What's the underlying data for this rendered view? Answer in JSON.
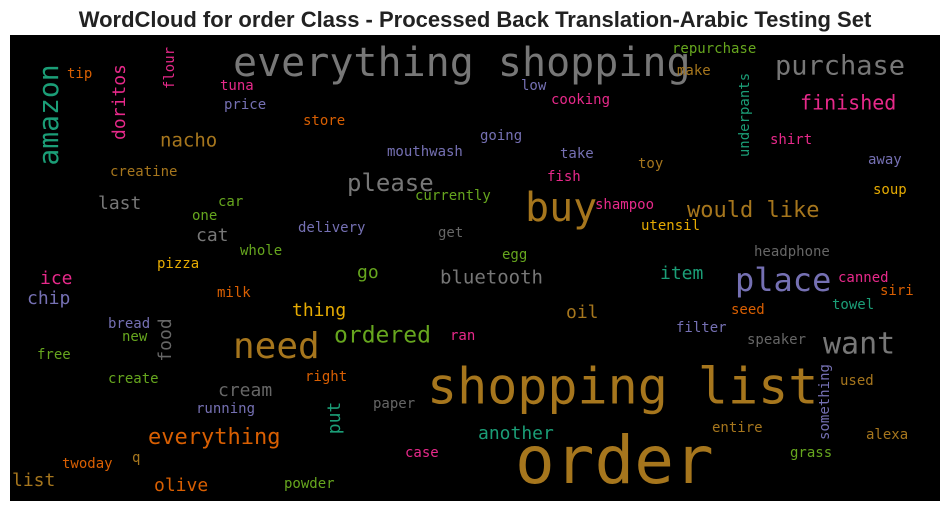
{
  "title": "WordCloud for order Class - Processed Back Translation-Arabic Testing Set",
  "words": [
    {
      "text": "everything shopping",
      "color": "#777777"
    },
    {
      "text": "purchase",
      "color": "#777777"
    },
    {
      "text": "amazon",
      "color": "#1b9e77"
    },
    {
      "text": "doritos",
      "color": "#e7298a"
    },
    {
      "text": "flour",
      "color": "#e7298a"
    },
    {
      "text": "tip",
      "color": "#d95f02"
    },
    {
      "text": "tuna",
      "color": "#e7298a"
    },
    {
      "text": "price",
      "color": "#7570b3"
    },
    {
      "text": "repurchase",
      "color": "#66a61e"
    },
    {
      "text": "make",
      "color": "#a6761d"
    },
    {
      "text": "low",
      "color": "#7570b3"
    },
    {
      "text": "cooking",
      "color": "#e7298a"
    },
    {
      "text": "underpants",
      "color": "#1b9e77"
    },
    {
      "text": "finished",
      "color": "#e7298a"
    },
    {
      "text": "store",
      "color": "#d95f02"
    },
    {
      "text": "nacho",
      "color": "#a6761d"
    },
    {
      "text": "going",
      "color": "#7570b3"
    },
    {
      "text": "shirt",
      "color": "#e7298a"
    },
    {
      "text": "mouthwash",
      "color": "#7570b3"
    },
    {
      "text": "take",
      "color": "#7570b3"
    },
    {
      "text": "toy",
      "color": "#a6761d"
    },
    {
      "text": "away",
      "color": "#7570b3"
    },
    {
      "text": "creatine",
      "color": "#a6761d"
    },
    {
      "text": "fish",
      "color": "#e7298a"
    },
    {
      "text": "please",
      "color": "#777777"
    },
    {
      "text": "soup",
      "color": "#e6ab02"
    },
    {
      "text": "currently",
      "color": "#66a61e"
    },
    {
      "text": "buy",
      "color": "#a6761d"
    },
    {
      "text": "last",
      "color": "#777777"
    },
    {
      "text": "car",
      "color": "#66a61e"
    },
    {
      "text": "shampoo",
      "color": "#e7298a"
    },
    {
      "text": "would like",
      "color": "#a6761d"
    },
    {
      "text": "one",
      "color": "#66a61e"
    },
    {
      "text": "utensil",
      "color": "#e6ab02"
    },
    {
      "text": "delivery",
      "color": "#7570b3"
    },
    {
      "text": "cat",
      "color": "#777777"
    },
    {
      "text": "get",
      "color": "#666666"
    },
    {
      "text": "whole",
      "color": "#66a61e"
    },
    {
      "text": "headphone",
      "color": "#666666"
    },
    {
      "text": "egg",
      "color": "#66a61e"
    },
    {
      "text": "pizza",
      "color": "#e6ab02"
    },
    {
      "text": "ice",
      "color": "#e7298a"
    },
    {
      "text": "place",
      "color": "#7570b3"
    },
    {
      "text": "go",
      "color": "#66a61e"
    },
    {
      "text": "bluetooth",
      "color": "#777777"
    },
    {
      "text": "item",
      "color": "#1b9e77"
    },
    {
      "text": "canned",
      "color": "#e7298a"
    },
    {
      "text": "milk",
      "color": "#d95f02"
    },
    {
      "text": "siri",
      "color": "#d95f02"
    },
    {
      "text": "chip",
      "color": "#7570b3"
    },
    {
      "text": "towel",
      "color": "#1b9e77"
    },
    {
      "text": "thing",
      "color": "#e6ab02"
    },
    {
      "text": "oil",
      "color": "#a6761d"
    },
    {
      "text": "seed",
      "color": "#d95f02"
    },
    {
      "text": "bread",
      "color": "#7570b3"
    },
    {
      "text": "food",
      "color": "#666666"
    },
    {
      "text": "filter",
      "color": "#7570b3"
    },
    {
      "text": "ordered",
      "color": "#66a61e"
    },
    {
      "text": "new",
      "color": "#66a61e"
    },
    {
      "text": "ran",
      "color": "#e7298a"
    },
    {
      "text": "need",
      "color": "#a6761d"
    },
    {
      "text": "want",
      "color": "#777777"
    },
    {
      "text": "speaker",
      "color": "#666666"
    },
    {
      "text": "free",
      "color": "#66a61e"
    },
    {
      "text": "shopping list",
      "color": "#a6761d"
    },
    {
      "text": "something",
      "color": "#7570b3"
    },
    {
      "text": "right",
      "color": "#d95f02"
    },
    {
      "text": "create",
      "color": "#66a61e"
    },
    {
      "text": "used",
      "color": "#a6761d"
    },
    {
      "text": "cream",
      "color": "#666666"
    },
    {
      "text": "paper",
      "color": "#666666"
    },
    {
      "text": "put",
      "color": "#1b9e77"
    },
    {
      "text": "running",
      "color": "#7570b3"
    },
    {
      "text": "everything",
      "color": "#d95f02"
    },
    {
      "text": "another",
      "color": "#1b9e77"
    },
    {
      "text": "entire",
      "color": "#a6761d"
    },
    {
      "text": "alexa",
      "color": "#a6761d"
    },
    {
      "text": "order",
      "color": "#a6761d"
    },
    {
      "text": "case",
      "color": "#e7298a"
    },
    {
      "text": "grass",
      "color": "#66a61e"
    },
    {
      "text": "q",
      "color": "#a6761d"
    },
    {
      "text": "twoday",
      "color": "#d95f02"
    },
    {
      "text": "list",
      "color": "#a6761d"
    },
    {
      "text": "olive",
      "color": "#d95f02"
    },
    {
      "text": "powder",
      "color": "#66a61e"
    }
  ]
}
